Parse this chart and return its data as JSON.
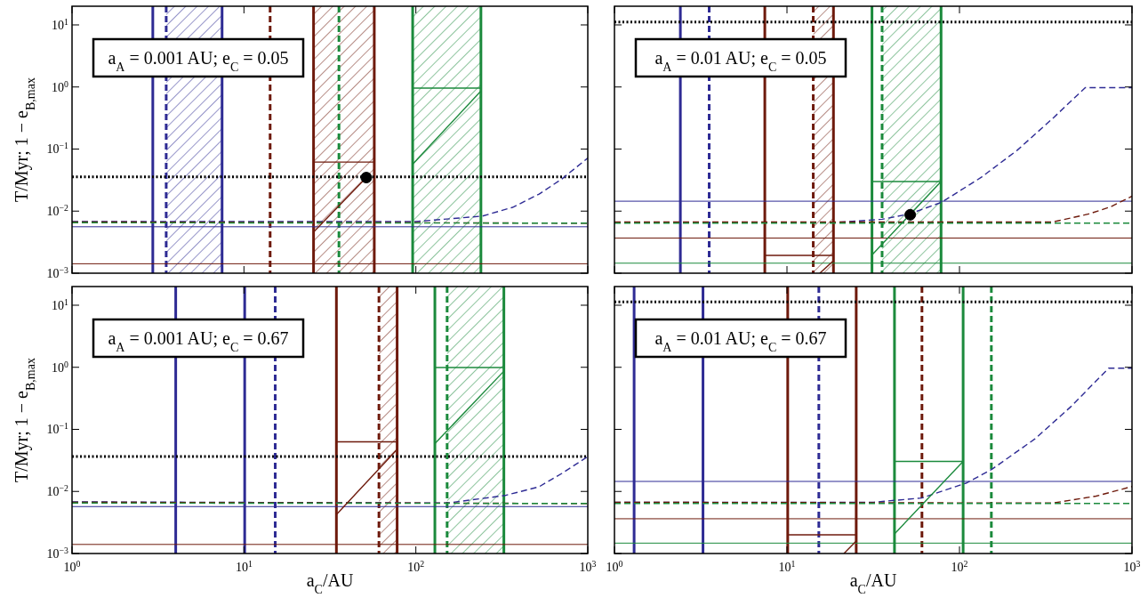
{
  "chart_data": [
    {
      "type": "line",
      "annotations": [
        "a$_{A}$ = 0.001 AU; e$_{C}$ = 0.05"
      ],
      "ylabel": "T/Myr; 1 − e$_{B,max}$",
      "log": "xy",
      "xlim": [
        1,
        1000
      ],
      "ylim": [
        0.001,
        20
      ],
      "tick_labels": "y",
      "xticks": [
        {
          "value": 1,
          "label": null
        },
        {
          "value": 10,
          "label": null
        },
        {
          "value": 100,
          "label": null
        },
        {
          "value": 1000,
          "label": null
        }
      ],
      "yticks": [
        {
          "value": 0.001,
          "label": "10$^{−3}$"
        },
        {
          "value": 0.01,
          "label": "10$^{−2}$"
        },
        {
          "value": 0.1,
          "label": "10$^{−1}$"
        },
        {
          "value": 1,
          "label": "10$^{0}$"
        },
        {
          "value": 10,
          "label": "10$^{1}$"
        }
      ],
      "ref_lines": [
        {
          "axis": "x",
          "value": 2.95,
          "color": "#2e2b94",
          "line_style": "solid"
        },
        {
          "axis": "x",
          "value": 3.53,
          "color": "#2e2b94",
          "line_style": "dashed"
        },
        {
          "axis": "x",
          "value": 7.46,
          "color": "#2e2b94",
          "line_style": "solid"
        },
        {
          "axis": "x",
          "value": 14.2,
          "color": "#6e1a0c",
          "line_style": "dashed"
        },
        {
          "axis": "x",
          "value": 25.4,
          "color": "#6e1a0c",
          "line_style": "solid"
        },
        {
          "axis": "x",
          "value": 57.3,
          "color": "#6e1a0c",
          "line_style": "solid"
        },
        {
          "axis": "x",
          "value": 35.7,
          "color": "#1b8a3c",
          "line_style": "dashed"
        },
        {
          "axis": "x",
          "value": 95.8,
          "color": "#1b8a3c",
          "line_style": "solid"
        },
        {
          "axis": "x",
          "value": 239,
          "color": "#1b8a3c",
          "line_style": "solid"
        },
        {
          "axis": "y",
          "value": 0.0356,
          "color": "#000000",
          "line_style": "dotted"
        },
        {
          "axis": "y",
          "value": 0.0056,
          "color": "#2e2b94",
          "line_style": "solid"
        },
        {
          "axis": "y",
          "value": 0.00142,
          "color": "#6e1a0c",
          "line_style": "solid"
        }
      ],
      "bands": [
        {
          "axis": "x",
          "from": 3.53,
          "to": 7.46,
          "color": "#2e2b94"
        },
        {
          "axis": "x",
          "from": 25.4,
          "to": 57.3,
          "color": "#6e1a0c"
        },
        {
          "axis": "x",
          "from": 95.8,
          "to": 239,
          "color": "#1b8a3c"
        }
      ],
      "series": [
        {
          "type": "line",
          "line_style": "dashed",
          "color": "#2e2b94",
          "x": [
            1,
            100,
            243,
            365,
            521,
            707,
            1000
          ],
          "values": [
            0.0068,
            0.0068,
            0.0083,
            0.0115,
            0.0188,
            0.033,
            0.0718
          ]
        },
        {
          "type": "line",
          "line_style": "dashed",
          "color": "#6e1a0c",
          "x": [
            1,
            1000
          ],
          "values": [
            0.0067,
            0.0064
          ]
        },
        {
          "type": "line",
          "line_style": "dashed",
          "color": "#1b8a3c",
          "x": [
            1,
            1000
          ],
          "values": [
            0.0065,
            0.0064
          ]
        },
        {
          "type": "line",
          "line_style": "solid",
          "color": "#6e1a0c",
          "x": [
            25.4,
            57.3
          ],
          "values": [
            0.0618,
            0.0618
          ]
        },
        {
          "type": "line",
          "line_style": "solid",
          "color": "#6e1a0c",
          "x": [
            25.4,
            51.5
          ],
          "values": [
            0.0046,
            0.0347
          ]
        },
        {
          "type": "line",
          "line_style": "solid",
          "color": "#1b8a3c",
          "x": [
            95.8,
            239
          ],
          "values": [
            0.96,
            0.96
          ]
        },
        {
          "type": "line",
          "line_style": "solid",
          "color": "#1b8a3c",
          "x": [
            95.8,
            239
          ],
          "values": [
            0.057,
            0.86
          ]
        },
        {
          "type": "scatter",
          "marker": "circle",
          "color": "#000000",
          "x": [
            51.5
          ],
          "values": [
            0.0347
          ]
        }
      ]
    },
    {
      "type": "line",
      "annotations": [
        "a$_{A}$ = 0.01 AU; e$_{C}$ = 0.05"
      ],
      "log": "xy",
      "xlim": [
        1,
        1000
      ],
      "ylim": [
        0.001,
        20
      ],
      "tick_labels": false,
      "xticks": [
        {
          "value": 1,
          "label": null
        },
        {
          "value": 10,
          "label": null
        },
        {
          "value": 100,
          "label": null
        },
        {
          "value": 1000,
          "label": null
        }
      ],
      "yticks": [
        {
          "value": 0.001,
          "label": null
        },
        {
          "value": 0.01,
          "label": null
        },
        {
          "value": 0.1,
          "label": null
        },
        {
          "value": 1,
          "label": null
        },
        {
          "value": 10,
          "label": null
        }
      ],
      "ref_lines": [
        {
          "axis": "x",
          "value": 2.41,
          "color": "#2e2b94",
          "line_style": "solid"
        },
        {
          "axis": "x",
          "value": 3.54,
          "color": "#2e2b94",
          "line_style": "dashed"
        },
        {
          "axis": "x",
          "value": 7.44,
          "color": "#6e1a0c",
          "line_style": "solid"
        },
        {
          "axis": "x",
          "value": 14.2,
          "color": "#6e1a0c",
          "line_style": "dashed"
        },
        {
          "axis": "x",
          "value": 18.6,
          "color": "#6e1a0c",
          "line_style": "solid"
        },
        {
          "axis": "x",
          "value": 31.1,
          "color": "#1b8a3c",
          "line_style": "solid"
        },
        {
          "axis": "x",
          "value": 35.6,
          "color": "#1b8a3c",
          "line_style": "dashed"
        },
        {
          "axis": "x",
          "value": 78.2,
          "color": "#1b8a3c",
          "line_style": "solid"
        },
        {
          "axis": "y",
          "value": 11.1,
          "color": "#000000",
          "line_style": "dotted"
        },
        {
          "axis": "y",
          "value": 0.01445,
          "color": "#2e2b94",
          "line_style": "solid"
        },
        {
          "axis": "y",
          "value": 0.00368,
          "color": "#6e1a0c",
          "line_style": "solid"
        },
        {
          "axis": "y",
          "value": 0.00145,
          "color": "#1b8a3c",
          "line_style": "solid"
        }
      ],
      "bands": [
        {
          "axis": "x",
          "from": 14.2,
          "to": 18.6,
          "color": "#6e1a0c"
        },
        {
          "axis": "x",
          "from": 35.6,
          "to": 78.2,
          "color": "#1b8a3c"
        }
      ],
      "series": [
        {
          "type": "line",
          "line_style": "dashed",
          "color": "#2e2b94",
          "x": [
            1,
            19.7,
            35.6,
            51.3,
            78.9,
            134,
            216,
            349,
            536,
            1000
          ],
          "values": [
            0.0065,
            0.0066,
            0.0074,
            0.009,
            0.0139,
            0.0352,
            0.0955,
            0.316,
            0.977,
            0.977
          ]
        },
        {
          "type": "line",
          "line_style": "dashed",
          "color": "#6e1a0c",
          "x": [
            1,
            349,
            562,
            750,
            1000
          ],
          "values": [
            0.0067,
            0.0067,
            0.009,
            0.0117,
            0.0174
          ]
        },
        {
          "type": "line",
          "line_style": "dashed",
          "color": "#1b8a3c",
          "x": [
            1,
            1000
          ],
          "values": [
            0.0064,
            0.0064
          ]
        },
        {
          "type": "line",
          "line_style": "solid",
          "color": "#6e1a0c",
          "x": [
            7.44,
            18.6
          ],
          "values": [
            0.00194,
            0.00194
          ]
        },
        {
          "type": "line",
          "line_style": "solid",
          "color": "#6e1a0c",
          "x": [
            15.5,
            18.6
          ],
          "values": [
            0.001,
            0.00159
          ]
        },
        {
          "type": "line",
          "line_style": "solid",
          "color": "#1b8a3c",
          "x": [
            31.1,
            78.2
          ],
          "values": [
            0.03,
            0.03
          ]
        },
        {
          "type": "line",
          "line_style": "solid",
          "color": "#1b8a3c",
          "x": [
            31.1,
            78.2
          ],
          "values": [
            0.00197,
            0.03
          ]
        },
        {
          "type": "scatter",
          "marker": "circle",
          "color": "#000000",
          "x": [
            51.8
          ],
          "values": [
            0.00873
          ]
        }
      ]
    },
    {
      "type": "line",
      "annotations": [
        "a$_{A}$ = 0.001 AU; e$_{C}$ = 0.67"
      ],
      "ylabel": "T/Myr; 1 − e$_{B,max}$",
      "xlabel": "a$_{C}$/AU",
      "log": "xy",
      "xlim": [
        1,
        1000
      ],
      "ylim": [
        0.001,
        20
      ],
      "xticks": [
        {
          "value": 1,
          "label": "10$^{0}$"
        },
        {
          "value": 10,
          "label": "10$^{1}$"
        },
        {
          "value": 100,
          "label": "10$^{2}$"
        },
        {
          "value": 1000,
          "label": "10$^{3}$"
        }
      ],
      "yticks": [
        {
          "value": 0.001,
          "label": "10$^{−3}$"
        },
        {
          "value": 0.01,
          "label": "10$^{−2}$"
        },
        {
          "value": 0.1,
          "label": "10$^{−1}$"
        },
        {
          "value": 1,
          "label": "10$^{0}$"
        },
        {
          "value": 10,
          "label": "10$^{1}$"
        }
      ],
      "ref_lines": [
        {
          "axis": "x",
          "value": 4.01,
          "color": "#2e2b94",
          "line_style": "solid"
        },
        {
          "axis": "x",
          "value": 10.1,
          "color": "#2e2b94",
          "line_style": "solid"
        },
        {
          "axis": "x",
          "value": 15.2,
          "color": "#2e2b94",
          "line_style": "dashed"
        },
        {
          "axis": "x",
          "value": 34.5,
          "color": "#6e1a0c",
          "line_style": "solid"
        },
        {
          "axis": "x",
          "value": 61,
          "color": "#6e1a0c",
          "line_style": "dashed"
        },
        {
          "axis": "x",
          "value": 77.8,
          "color": "#6e1a0c",
          "line_style": "solid"
        },
        {
          "axis": "x",
          "value": 129,
          "color": "#1b8a3c",
          "line_style": "solid"
        },
        {
          "axis": "x",
          "value": 152,
          "color": "#1b8a3c",
          "line_style": "dashed"
        },
        {
          "axis": "x",
          "value": 325,
          "color": "#1b8a3c",
          "line_style": "solid"
        },
        {
          "axis": "y",
          "value": 0.0364,
          "color": "#000000",
          "line_style": "dotted"
        },
        {
          "axis": "y",
          "value": 0.0057,
          "color": "#2e2b94",
          "line_style": "solid"
        },
        {
          "axis": "y",
          "value": 0.0014,
          "color": "#6e1a0c",
          "line_style": "solid"
        }
      ],
      "bands": [
        {
          "axis": "x",
          "from": 61,
          "to": 77.8,
          "color": "#6e1a0c"
        },
        {
          "axis": "x",
          "from": 152,
          "to": 325,
          "color": "#1b8a3c"
        }
      ],
      "series": [
        {
          "type": "line",
          "line_style": "dashed",
          "color": "#2e2b94",
          "x": [
            1,
            152,
            330,
            521,
            707,
            1000
          ],
          "values": [
            0.0068,
            0.0065,
            0.0086,
            0.0119,
            0.0195,
            0.0364
          ]
        },
        {
          "type": "line",
          "line_style": "dashed",
          "color": "#6e1a0c",
          "x": [
            1,
            1000
          ],
          "values": [
            0.0067,
            0.0064
          ]
        },
        {
          "type": "line",
          "line_style": "dashed",
          "color": "#1b8a3c",
          "x": [
            1,
            1000
          ],
          "values": [
            0.0065,
            0.0064
          ]
        },
        {
          "type": "line",
          "line_style": "solid",
          "color": "#6e1a0c",
          "x": [
            34.5,
            77.8
          ],
          "values": [
            0.063,
            0.063
          ]
        },
        {
          "type": "line",
          "line_style": "solid",
          "color": "#6e1a0c",
          "x": [
            34.5,
            77.8
          ],
          "values": [
            0.00424,
            0.0475
          ]
        },
        {
          "type": "line",
          "line_style": "solid",
          "color": "#1b8a3c",
          "x": [
            129,
            325
          ],
          "values": [
            0.99,
            0.99
          ]
        },
        {
          "type": "line",
          "line_style": "solid",
          "color": "#1b8a3c",
          "x": [
            129,
            325
          ],
          "values": [
            0.059,
            0.865
          ]
        }
      ]
    },
    {
      "type": "line",
      "annotations": [
        "a$_{A}$ = 0.01 AU; e$_{C}$ = 0.67"
      ],
      "xlabel": "a$_{C}$/AU",
      "log": "xy",
      "xlim": [
        1,
        1000
      ],
      "ylim": [
        0.001,
        20
      ],
      "tick_labels": "x",
      "xticks": [
        {
          "value": 1,
          "label": "10$^{0}$"
        },
        {
          "value": 10,
          "label": "10$^{1}$"
        },
        {
          "value": 100,
          "label": "10$^{2}$"
        },
        {
          "value": 1000,
          "label": "10$^{3}$"
        }
      ],
      "yticks": [
        {
          "value": 0.001,
          "label": null
        },
        {
          "value": 0.01,
          "label": null
        },
        {
          "value": 0.1,
          "label": null
        },
        {
          "value": 1,
          "label": null
        },
        {
          "value": 10,
          "label": null
        }
      ],
      "ref_lines": [
        {
          "axis": "x",
          "value": 1.3,
          "color": "#2e2b94",
          "line_style": "solid"
        },
        {
          "axis": "x",
          "value": 3.26,
          "color": "#2e2b94",
          "line_style": "solid"
        },
        {
          "axis": "x",
          "value": 15.3,
          "color": "#2e2b94",
          "line_style": "dashed"
        },
        {
          "axis": "x",
          "value": 10.1,
          "color": "#6e1a0c",
          "line_style": "solid"
        },
        {
          "axis": "x",
          "value": 25.2,
          "color": "#6e1a0c",
          "line_style": "solid"
        },
        {
          "axis": "x",
          "value": 60.6,
          "color": "#6e1a0c",
          "line_style": "dashed"
        },
        {
          "axis": "x",
          "value": 42,
          "color": "#1b8a3c",
          "line_style": "solid"
        },
        {
          "axis": "x",
          "value": 105,
          "color": "#1b8a3c",
          "line_style": "solid"
        },
        {
          "axis": "x",
          "value": 153,
          "color": "#1b8a3c",
          "line_style": "dashed"
        },
        {
          "axis": "y",
          "value": 11.3,
          "color": "#000000",
          "line_style": "dotted"
        },
        {
          "axis": "y",
          "value": 0.0145,
          "color": "#2e2b94",
          "line_style": "solid"
        },
        {
          "axis": "y",
          "value": 0.00363,
          "color": "#6e1a0c",
          "line_style": "solid"
        },
        {
          "axis": "y",
          "value": 0.00147,
          "color": "#1b8a3c",
          "line_style": "solid"
        }
      ],
      "series": [
        {
          "type": "line",
          "line_style": "dashed",
          "color": "#2e2b94",
          "x": [
            1,
            31.8,
            60.6,
            110,
            154,
            274,
            443,
            732,
            1000
          ],
          "values": [
            0.0067,
            0.0067,
            0.00785,
            0.0137,
            0.0227,
            0.0703,
            0.233,
            0.966,
            0.966
          ]
        },
        {
          "type": "line",
          "line_style": "dashed",
          "color": "#6e1a0c",
          "x": [
            1,
            349,
            619,
            1000
          ],
          "values": [
            0.0067,
            0.0065,
            0.0084,
            0.012
          ]
        },
        {
          "type": "line",
          "line_style": "dashed",
          "color": "#1b8a3c",
          "x": [
            1,
            1000
          ],
          "values": [
            0.0064,
            0.0064
          ]
        },
        {
          "type": "line",
          "line_style": "solid",
          "color": "#6e1a0c",
          "x": [
            10.1,
            25.2
          ],
          "values": [
            0.002,
            0.002
          ]
        },
        {
          "type": "line",
          "line_style": "solid",
          "color": "#6e1a0c",
          "x": [
            21.4,
            25.2
          ],
          "values": [
            0.001,
            0.00159
          ]
        },
        {
          "type": "line",
          "line_style": "solid",
          "color": "#1b8a3c",
          "x": [
            42,
            105
          ],
          "values": [
            0.0305,
            0.0305
          ]
        },
        {
          "type": "line",
          "line_style": "solid",
          "color": "#1b8a3c",
          "x": [
            42,
            105
          ],
          "values": [
            0.00207,
            0.0305
          ]
        }
      ]
    }
  ]
}
